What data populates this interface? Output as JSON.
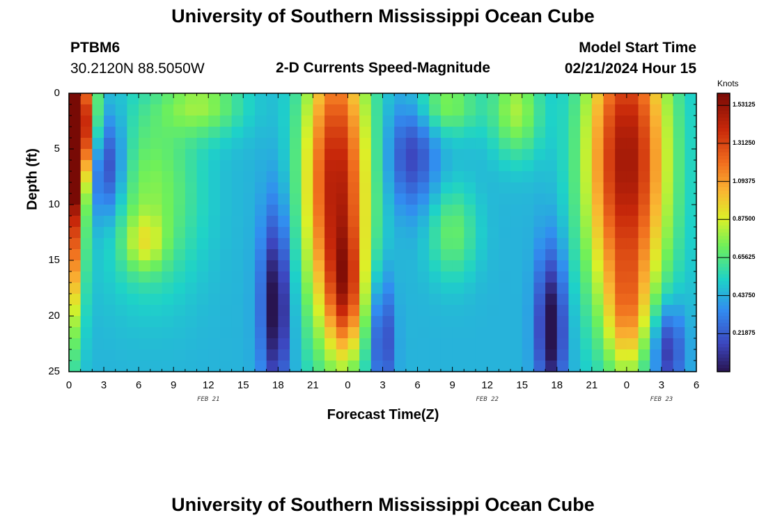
{
  "page": {
    "title_top": "University of Southern Mississippi Ocean Cube",
    "title_bottom": "University of Southern Mississippi Ocean Cube",
    "station": "PTBM6",
    "coords": "30.2120N  88.5050W",
    "model_label": "Model Start Time",
    "model_time": "02/21/2024 Hour 15",
    "plot_title": "2-D Currents Speed-Magnitude"
  },
  "chart_data": {
    "type": "heatmap",
    "title": "2-D Currents Speed-Magnitude",
    "xlabel": "Forecast Time(Z)",
    "ylabel": "Depth (ft)",
    "x_tick_labels": [
      "0",
      "3",
      "6",
      "9",
      "12",
      "15",
      "18",
      "21",
      "0",
      "3",
      "6",
      "9",
      "12",
      "15",
      "18",
      "21",
      "0",
      "3",
      "6"
    ],
    "x_range_hours": [
      0,
      54
    ],
    "y_tick_labels": [
      "0",
      "5",
      "10",
      "15",
      "20",
      "25"
    ],
    "y_range_ft": [
      0,
      25
    ],
    "date_labels": [
      {
        "text": "FEB 21",
        "hour": 12
      },
      {
        "text": "FEB 22",
        "hour": 36
      },
      {
        "text": "FEB 23",
        "hour": 51
      }
    ],
    "colorbar": {
      "label": "Knots",
      "ticks": [
        "1.53125",
        "1.31250",
        "1.09375",
        "0.87500",
        "0.65625",
        "0.43750",
        "0.21875"
      ],
      "range": [
        0,
        1.6
      ]
    },
    "grid": {
      "nx": 54,
      "ny": 25
    },
    "features": [
      {
        "hour": 0.5,
        "depth": 3,
        "speed": 1.3,
        "sx": 1.2,
        "sy": 4
      },
      {
        "hour": 0.0,
        "depth": 10,
        "speed": 1.0,
        "sx": 0.8,
        "sy": 8
      },
      {
        "hour": 3,
        "depth": 6.5,
        "speed": -0.45,
        "sx": 1.3,
        "sy": 3.5
      },
      {
        "hour": 7,
        "depth": 9,
        "speed": 0.3,
        "sx": 3.0,
        "sy": 6
      },
      {
        "hour": 6.5,
        "depth": 13.5,
        "speed": 0.25,
        "sx": 1.2,
        "sy": 1.8
      },
      {
        "hour": 11.5,
        "depth": 1,
        "speed": 0.3,
        "sx": 2.5,
        "sy": 2
      },
      {
        "hour": 17.8,
        "depth": 19,
        "speed": -0.5,
        "sx": 0.9,
        "sy": 6
      },
      {
        "hour": 23,
        "depth": 8,
        "speed": 1.0,
        "sx": 2.0,
        "sy": 10
      },
      {
        "hour": 23.8,
        "depth": 18,
        "speed": 0.5,
        "sx": 1.0,
        "sy": 4
      },
      {
        "hour": 27,
        "depth": 22,
        "speed": -0.35,
        "sx": 0.7,
        "sy": 4
      },
      {
        "hour": 29.5,
        "depth": 5.5,
        "speed": -0.3,
        "sx": 1.5,
        "sy": 3.5
      },
      {
        "hour": 33,
        "depth": 12.5,
        "speed": 0.25,
        "sx": 1.5,
        "sy": 3
      },
      {
        "hour": 32.5,
        "depth": 1,
        "speed": 0.3,
        "sx": 2,
        "sy": 2
      },
      {
        "hour": 38.5,
        "depth": 1.5,
        "speed": 0.35,
        "sx": 1.5,
        "sy": 3
      },
      {
        "hour": 41.5,
        "depth": 21,
        "speed": -0.5,
        "sx": 0.9,
        "sy": 5
      },
      {
        "hour": 48,
        "depth": 6,
        "speed": 1.05,
        "sx": 2.5,
        "sy": 10
      },
      {
        "hour": 48,
        "depth": 20,
        "speed": 0.35,
        "sx": 1.2,
        "sy": 4
      },
      {
        "hour": 51.5,
        "depth": 23,
        "speed": -0.4,
        "sx": 1.0,
        "sy": 3
      }
    ],
    "base_speed": 0.45
  }
}
